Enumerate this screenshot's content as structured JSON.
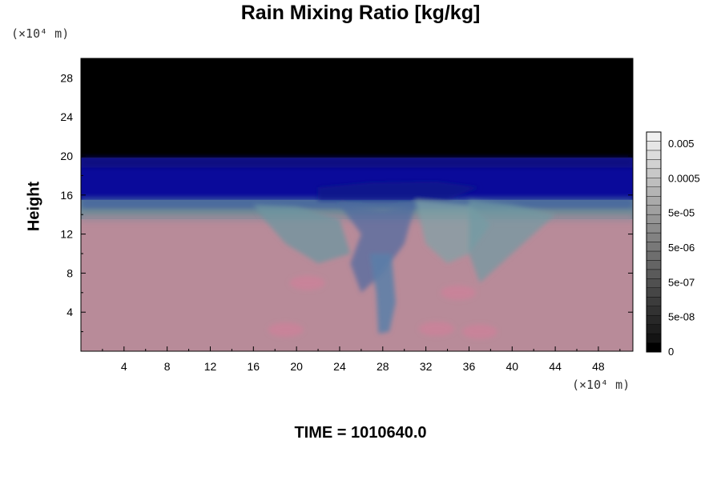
{
  "chart_data": {
    "type": "heatmap",
    "title": "Rain Mixing Ratio [kg/kg]",
    "ylabel": "Height",
    "xlabel": "",
    "x_unit": "(×10⁴ m)",
    "y_unit": "(×10⁴ m)",
    "x_ticks": [
      "4",
      "8",
      "12",
      "16",
      "20",
      "24",
      "28",
      "32",
      "36",
      "40",
      "44",
      "48"
    ],
    "y_ticks": [
      "4",
      "8",
      "12",
      "16",
      "20",
      "24",
      "28"
    ],
    "xlim": [
      0,
      51.2
    ],
    "ylim": [
      0,
      30
    ],
    "colorbar": {
      "labels": [
        "0.005",
        "0.0005",
        "5e-05",
        "5e-06",
        "5e-07",
        "5e-08",
        "0"
      ],
      "colors": [
        "#000000",
        "#141414",
        "#1e1e1e",
        "#282828",
        "#323232",
        "#3c3c3c",
        "#464646",
        "#505050",
        "#5a5a5a",
        "#646464",
        "#6e6e6e",
        "#787878",
        "#828282",
        "#8c8c8c",
        "#969696",
        "#a0a0a0",
        "#aaaaaa",
        "#b4b4b4",
        "#bebebe",
        "#c8c8c8",
        "#d2d2d2",
        "#dcdcdc",
        "#e6e6e6",
        "#f0f0f0"
      ]
    },
    "field_layers": [
      {
        "name": "top-dry",
        "y_from": 19.8,
        "y_to": 30,
        "color": "#000000"
      },
      {
        "name": "upper-band",
        "y_from": 15.5,
        "y_to": 19.8,
        "color": "#0a0a9a"
      },
      {
        "name": "transition",
        "y_from": 13.5,
        "y_to": 15.5,
        "color": "#6f8a96"
      },
      {
        "name": "lower-moist",
        "y_from": 0,
        "y_to": 13.5,
        "color": "#b88b99"
      }
    ],
    "plume_x_range": [
      16,
      44
    ],
    "plume_core_x": 28
  },
  "footer": {
    "time_label": "TIME = 1010640.0"
  }
}
